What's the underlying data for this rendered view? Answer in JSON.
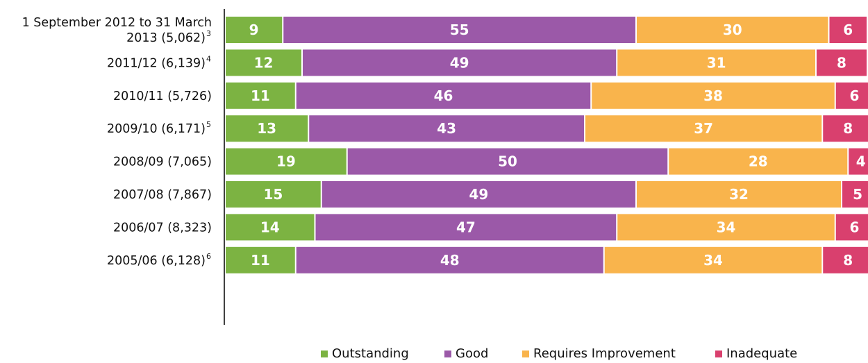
{
  "chart_data": {
    "type": "bar",
    "orientation": "horizontal",
    "stacked": true,
    "categories": [
      {
        "label": "1 September 2012 to 31 March 2013 (5,062)",
        "sup": "3",
        "lines": [
          "1 September 2012 to 31 March",
          "2013 (5,062)"
        ]
      },
      {
        "label": "2011/12 (6,139)",
        "sup": "4",
        "lines": [
          "2011/12 (6,139)"
        ]
      },
      {
        "label": "2010/11 (5,726)",
        "sup": "",
        "lines": [
          "2010/11 (5,726)"
        ]
      },
      {
        "label": "2009/10 (6,171)",
        "sup": "5",
        "lines": [
          "2009/10 (6,171)"
        ]
      },
      {
        "label": "2008/09 (7,065)",
        "sup": "",
        "lines": [
          "2008/09 (7,065)"
        ]
      },
      {
        "label": "2007/08 (7,867)",
        "sup": "",
        "lines": [
          "2007/08 (7,867)"
        ]
      },
      {
        "label": "2006/07 (8,323)",
        "sup": "",
        "lines": [
          "2006/07 (8,323)"
        ]
      },
      {
        "label": "2005/06 (6,128)",
        "sup": "6",
        "lines": [
          "2005/06 (6,128)"
        ]
      }
    ],
    "series": [
      {
        "name": "Outstanding",
        "color": "#7cb342",
        "values": [
          9,
          12,
          11,
          13,
          19,
          15,
          14,
          11
        ]
      },
      {
        "name": "Good",
        "color": "#9b59a8",
        "values": [
          55,
          49,
          46,
          43,
          50,
          49,
          47,
          48
        ]
      },
      {
        "name": "Requires Improvement",
        "color": "#f9b44c",
        "values": [
          30,
          31,
          38,
          37,
          28,
          32,
          34,
          34
        ]
      },
      {
        "name": "Inadequate",
        "color": "#d9406e",
        "values": [
          6,
          8,
          6,
          8,
          4,
          5,
          6,
          8
        ]
      }
    ],
    "xlim": [
      0,
      100
    ],
    "grid": false,
    "legend_position": "bottom"
  }
}
